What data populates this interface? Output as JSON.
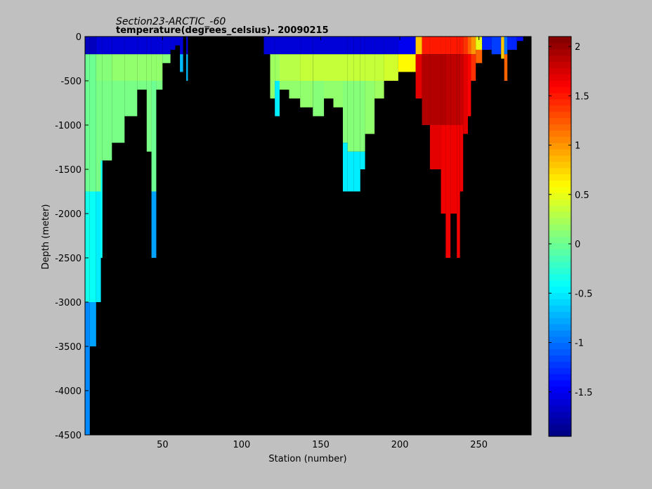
{
  "figure": {
    "title_line1": "Section23-ARCTIC_-60",
    "title_line2": "temperature(degrees_celsius)- 20090215",
    "background": "#c0c0c0",
    "plot_background": "#000000"
  },
  "chart_data": {
    "type": "heatmap",
    "title": "Section23-ARCTIC_-60",
    "subtitle": "temperature(degrees_celsius)- 20090215",
    "xlabel": "Station (number)",
    "ylabel": "Depth (meter)",
    "xlim": [
      1,
      283
    ],
    "ylim": [
      -4500,
      0
    ],
    "xticks": [
      50,
      100,
      150,
      200,
      250
    ],
    "yticks": [
      0,
      -500,
      -1000,
      -1500,
      -2000,
      -2500,
      -3000,
      -3500,
      -4000,
      -4500
    ],
    "colorbar": {
      "label": "",
      "range": [
        -1.95,
        2.1
      ],
      "ticks": [
        2,
        1.5,
        1,
        0.5,
        0,
        -0.5,
        -1,
        -1.5
      ],
      "colormap": "jet"
    },
    "masked_color": "#000000",
    "profiles": [
      {
        "x": [
          1,
          4
        ],
        "max_depth": 4500,
        "layers": [
          [
            0,
            200,
            -1.7
          ],
          [
            200,
            500,
            0.0
          ],
          [
            500,
            1750,
            0.0
          ],
          [
            1750,
            3000,
            -0.35
          ],
          [
            3000,
            4500,
            -0.9
          ]
        ]
      },
      {
        "x": [
          4,
          8
        ],
        "max_depth": 3500,
        "layers": [
          [
            0,
            200,
            -1.7
          ],
          [
            200,
            500,
            0.0
          ],
          [
            500,
            1750,
            0.0
          ],
          [
            1750,
            3000,
            -0.4
          ],
          [
            3000,
            3500,
            -0.8
          ]
        ]
      },
      {
        "x": [
          8,
          11
        ],
        "max_depth": 3000,
        "layers": [
          [
            0,
            200,
            -1.6
          ],
          [
            200,
            500,
            0.1
          ],
          [
            500,
            1750,
            0.05
          ],
          [
            1750,
            3000,
            -0.5
          ]
        ]
      },
      {
        "x": [
          11,
          12
        ],
        "max_depth": 2500,
        "layers": [
          [
            0,
            200,
            -1.6
          ],
          [
            200,
            500,
            0.1
          ],
          [
            500,
            1400,
            0.05
          ],
          [
            1400,
            2500,
            -0.4
          ]
        ]
      },
      {
        "x": [
          12,
          18
        ],
        "max_depth": 1400,
        "layers": [
          [
            0,
            200,
            -1.6
          ],
          [
            200,
            500,
            0.1
          ],
          [
            500,
            1400,
            0.05
          ]
        ]
      },
      {
        "x": [
          18,
          26
        ],
        "max_depth": 1200,
        "layers": [
          [
            0,
            200,
            -1.6
          ],
          [
            200,
            500,
            0.15
          ],
          [
            500,
            1200,
            0.05
          ]
        ]
      },
      {
        "x": [
          26,
          34
        ],
        "max_depth": 900,
        "layers": [
          [
            0,
            200,
            -1.6
          ],
          [
            200,
            500,
            0.15
          ],
          [
            500,
            900,
            0.05
          ]
        ]
      },
      {
        "x": [
          34,
          40
        ],
        "max_depth": 600,
        "layers": [
          [
            0,
            200,
            -1.6
          ],
          [
            200,
            500,
            0.15
          ],
          [
            500,
            600,
            0.05
          ]
        ]
      },
      {
        "x": [
          40,
          43
        ],
        "max_depth": 1300,
        "layers": [
          [
            0,
            200,
            -1.6
          ],
          [
            200,
            500,
            0.15
          ],
          [
            500,
            1300,
            0.05
          ]
        ]
      },
      {
        "x": [
          43,
          46
        ],
        "max_depth": 2500,
        "layers": [
          [
            0,
            200,
            -1.6
          ],
          [
            200,
            500,
            0.15
          ],
          [
            500,
            1750,
            0.0
          ],
          [
            1750,
            2500,
            -0.8
          ]
        ]
      },
      {
        "x": [
          46,
          50
        ],
        "max_depth": 600,
        "layers": [
          [
            0,
            200,
            -1.6
          ],
          [
            200,
            500,
            0.15
          ],
          [
            500,
            600,
            0.05
          ]
        ]
      },
      {
        "x": [
          50,
          55
        ],
        "max_depth": 300,
        "layers": [
          [
            0,
            200,
            -1.6
          ],
          [
            200,
            300,
            0.1
          ]
        ]
      },
      {
        "x": [
          55,
          58
        ],
        "max_depth": 150,
        "layers": [
          [
            0,
            150,
            -1.6
          ]
        ]
      },
      {
        "x": [
          58,
          61
        ],
        "max_depth": 100,
        "layers": [
          [
            0,
            100,
            -1.6
          ]
        ]
      },
      {
        "x": [
          61,
          63
        ],
        "max_depth": 400,
        "layers": [
          [
            0,
            200,
            -1.6
          ],
          [
            200,
            400,
            -0.7
          ]
        ]
      },
      {
        "x": [
          65,
          66
        ],
        "max_depth": 500,
        "layers": [
          [
            0,
            200,
            -1.6
          ],
          [
            200,
            500,
            -0.7
          ]
        ]
      },
      {
        "x": [
          114,
          118
        ],
        "max_depth": 200,
        "layers": [
          [
            0,
            200,
            -1.6
          ]
        ]
      },
      {
        "x": [
          118,
          121
        ],
        "max_depth": 700,
        "layers": [
          [
            0,
            200,
            -1.6
          ],
          [
            200,
            500,
            0.2
          ],
          [
            500,
            700,
            0.15
          ]
        ]
      },
      {
        "x": [
          121,
          124
        ],
        "max_depth": 900,
        "layers": [
          [
            0,
            200,
            -1.6
          ],
          [
            200,
            500,
            0.2
          ],
          [
            500,
            900,
            -0.5
          ]
        ]
      },
      {
        "x": [
          124,
          130
        ],
        "max_depth": 600,
        "layers": [
          [
            0,
            200,
            -1.6
          ],
          [
            200,
            500,
            0.3
          ],
          [
            500,
            600,
            0.15
          ]
        ]
      },
      {
        "x": [
          130,
          137
        ],
        "max_depth": 700,
        "layers": [
          [
            0,
            200,
            -1.6
          ],
          [
            200,
            500,
            0.3
          ],
          [
            500,
            700,
            0.15
          ]
        ]
      },
      {
        "x": [
          137,
          145
        ],
        "max_depth": 800,
        "layers": [
          [
            0,
            200,
            -1.6
          ],
          [
            200,
            500,
            0.35
          ],
          [
            500,
            800,
            0.15
          ]
        ]
      },
      {
        "x": [
          145,
          152
        ],
        "max_depth": 900,
        "layers": [
          [
            0,
            200,
            -1.6
          ],
          [
            200,
            500,
            0.35
          ],
          [
            500,
            900,
            0.1
          ]
        ]
      },
      {
        "x": [
          152,
          158
        ],
        "max_depth": 700,
        "layers": [
          [
            0,
            200,
            -1.6
          ],
          [
            200,
            500,
            0.35
          ],
          [
            500,
            700,
            0.15
          ]
        ]
      },
      {
        "x": [
          158,
          164
        ],
        "max_depth": 800,
        "layers": [
          [
            0,
            200,
            -1.6
          ],
          [
            200,
            500,
            0.35
          ],
          [
            500,
            800,
            0.15
          ]
        ]
      },
      {
        "x": [
          164,
          167
        ],
        "max_depth": 1750,
        "layers": [
          [
            0,
            200,
            -1.6
          ],
          [
            200,
            500,
            0.35
          ],
          [
            500,
            1200,
            0.1
          ],
          [
            1200,
            1750,
            -0.5
          ]
        ]
      },
      {
        "x": [
          167,
          171
        ],
        "max_depth": 1750,
        "layers": [
          [
            0,
            200,
            -1.6
          ],
          [
            200,
            500,
            0.35
          ],
          [
            500,
            1300,
            0.1
          ],
          [
            1300,
            1750,
            -0.5
          ]
        ]
      },
      {
        "x": [
          171,
          175
        ],
        "max_depth": 1750,
        "layers": [
          [
            0,
            200,
            -1.6
          ],
          [
            200,
            500,
            0.35
          ],
          [
            500,
            1300,
            0.1
          ],
          [
            1300,
            1750,
            -0.5
          ]
        ]
      },
      {
        "x": [
          175,
          178
        ],
        "max_depth": 1500,
        "layers": [
          [
            0,
            200,
            -1.6
          ],
          [
            200,
            500,
            0.35
          ],
          [
            500,
            1300,
            0.1
          ],
          [
            1300,
            1500,
            -0.5
          ]
        ]
      },
      {
        "x": [
          178,
          184
        ],
        "max_depth": 1100,
        "layers": [
          [
            0,
            200,
            -1.6
          ],
          [
            200,
            500,
            0.35
          ],
          [
            500,
            1100,
            0.15
          ]
        ]
      },
      {
        "x": [
          184,
          190
        ],
        "max_depth": 700,
        "layers": [
          [
            0,
            200,
            -1.6
          ],
          [
            200,
            500,
            0.35
          ],
          [
            500,
            700,
            0.2
          ]
        ]
      },
      {
        "x": [
          190,
          199
        ],
        "max_depth": 500,
        "layers": [
          [
            0,
            200,
            -1.6
          ],
          [
            200,
            500,
            0.4
          ]
        ]
      },
      {
        "x": [
          199,
          210
        ],
        "max_depth": 400,
        "layers": [
          [
            0,
            200,
            -1.5
          ],
          [
            200,
            400,
            0.6
          ]
        ]
      },
      {
        "x": [
          210,
          214
        ],
        "max_depth": 700,
        "layers": [
          [
            0,
            200,
            0.8
          ],
          [
            200,
            700,
            1.7
          ]
        ]
      },
      {
        "x": [
          214,
          219
        ],
        "max_depth": 1000,
        "layers": [
          [
            0,
            200,
            1.5
          ],
          [
            200,
            1000,
            1.9
          ]
        ]
      },
      {
        "x": [
          219,
          226
        ],
        "max_depth": 1500,
        "layers": [
          [
            0,
            200,
            1.5
          ],
          [
            200,
            1000,
            1.9
          ],
          [
            1000,
            1500,
            1.7
          ]
        ]
      },
      {
        "x": [
          226,
          229
        ],
        "max_depth": 2000,
        "layers": [
          [
            0,
            200,
            1.5
          ],
          [
            200,
            1000,
            1.9
          ],
          [
            1000,
            2000,
            1.65
          ]
        ]
      },
      {
        "x": [
          229,
          232
        ],
        "max_depth": 2500,
        "layers": [
          [
            0,
            200,
            1.5
          ],
          [
            200,
            1000,
            1.85
          ],
          [
            1000,
            2500,
            1.65
          ]
        ]
      },
      {
        "x": [
          232,
          236
        ],
        "max_depth": 2000,
        "layers": [
          [
            0,
            200,
            1.5
          ],
          [
            200,
            1000,
            1.85
          ],
          [
            1000,
            2000,
            1.65
          ]
        ]
      },
      {
        "x": [
          236,
          238
        ],
        "max_depth": 2500,
        "layers": [
          [
            0,
            200,
            1.5
          ],
          [
            200,
            1000,
            1.85
          ],
          [
            1000,
            2500,
            1.65
          ]
        ]
      },
      {
        "x": [
          238,
          240
        ],
        "max_depth": 1750,
        "layers": [
          [
            0,
            200,
            1.5
          ],
          [
            200,
            1000,
            1.8
          ],
          [
            1000,
            1750,
            1.65
          ]
        ]
      },
      {
        "x": [
          240,
          243
        ],
        "max_depth": 1100,
        "layers": [
          [
            0,
            200,
            1.4
          ],
          [
            200,
            1100,
            1.7
          ]
        ]
      },
      {
        "x": [
          243,
          245
        ],
        "max_depth": 900,
        "layers": [
          [
            0,
            200,
            1.2
          ],
          [
            200,
            900,
            1.6
          ]
        ]
      },
      {
        "x": [
          245,
          248
        ],
        "max_depth": 500,
        "layers": [
          [
            0,
            200,
            1.0
          ],
          [
            200,
            500,
            1.4
          ]
        ]
      },
      {
        "x": [
          248,
          252
        ],
        "max_depth": 300,
        "layers": [
          [
            0,
            150,
            0.5
          ],
          [
            150,
            300,
            1.2
          ]
        ]
      },
      {
        "x": [
          252,
          258
        ],
        "max_depth": 150,
        "layers": [
          [
            0,
            150,
            -1.3
          ]
        ]
      },
      {
        "x": [
          258,
          264
        ],
        "max_depth": 200,
        "layers": [
          [
            0,
            200,
            -1.2
          ]
        ]
      },
      {
        "x": [
          264,
          266
        ],
        "max_depth": 250,
        "layers": [
          [
            0,
            250,
            0.8
          ]
        ]
      },
      {
        "x": [
          266,
          268
        ],
        "max_depth": 500,
        "layers": [
          [
            0,
            200,
            -1.0
          ],
          [
            200,
            500,
            1.2
          ]
        ]
      },
      {
        "x": [
          268,
          274
        ],
        "max_depth": 150,
        "layers": [
          [
            0,
            150,
            -1.3
          ]
        ]
      },
      {
        "x": [
          274,
          278
        ],
        "max_depth": 50,
        "layers": [
          [
            0,
            50,
            -1.4
          ]
        ]
      }
    ]
  }
}
